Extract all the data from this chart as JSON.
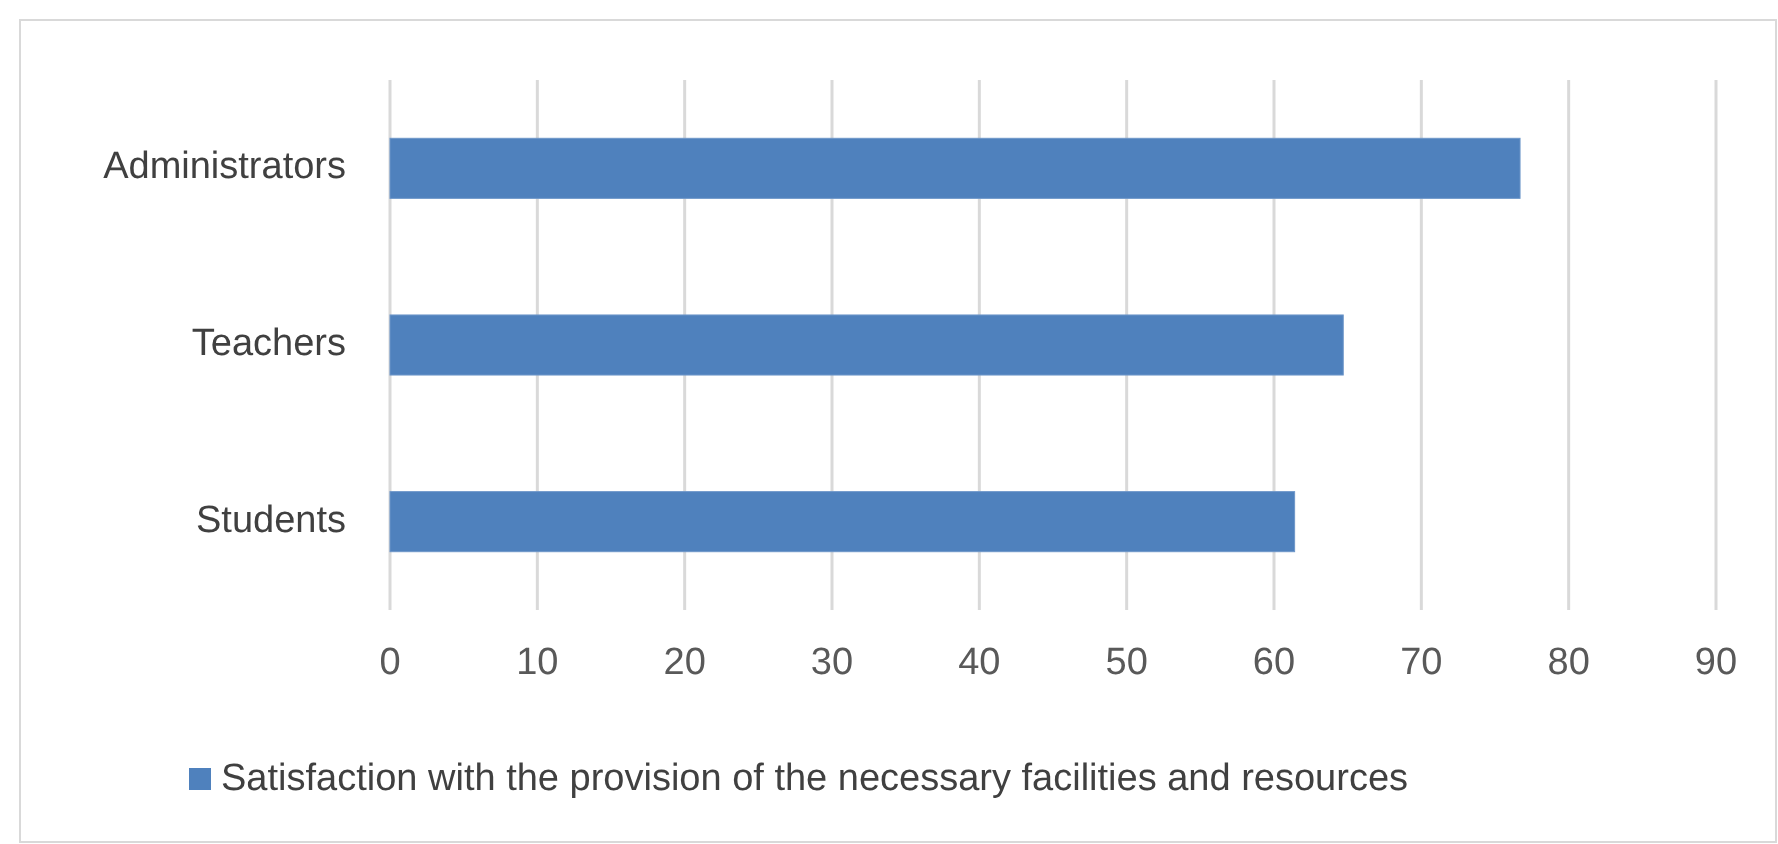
{
  "chart_data": {
    "type": "bar",
    "orientation": "horizontal",
    "categories": [
      "Administrators",
      "Teachers",
      "Students"
    ],
    "series": [
      {
        "name": "Satisfaction with the provision of the necessary facilities and resources",
        "color": "#4f81bd",
        "values": [
          76.7,
          64.7,
          61.4
        ]
      }
    ],
    "xlim": [
      0,
      90
    ],
    "xticks": [
      0,
      10,
      20,
      30,
      40,
      50,
      60,
      70,
      80,
      90
    ],
    "grid": "x",
    "legend": "bottom"
  }
}
